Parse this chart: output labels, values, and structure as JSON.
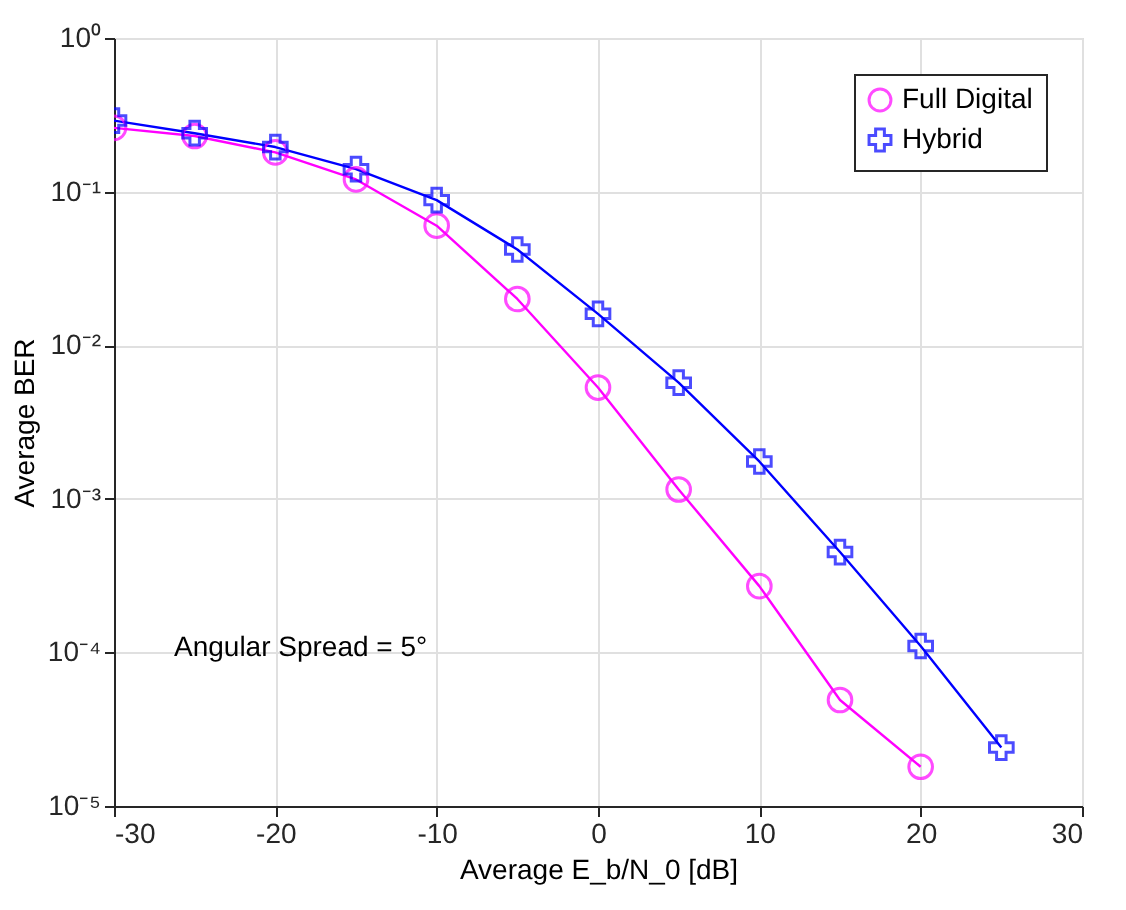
{
  "chart_data": {
    "type": "line",
    "xlabel": "Average E_b/N_0 [dB]",
    "ylabel": "Average BER",
    "x": [
      -30,
      -25,
      -20,
      -15,
      -10,
      -5,
      0,
      5,
      10,
      15,
      20,
      25
    ],
    "series": [
      {
        "name": "Full Digital",
        "color": "#ff00ff",
        "marker": "circle",
        "values": [
          0.26,
          0.23,
          0.18,
          0.12,
          0.06,
          0.02,
          0.0053,
          0.00115,
          0.00027,
          4.9e-05,
          1.8e-05,
          null
        ]
      },
      {
        "name": "Hybrid",
        "color": "#0000ff",
        "marker": "cross",
        "values": [
          0.29,
          0.24,
          0.195,
          0.14,
          0.088,
          0.042,
          0.016,
          0.0057,
          0.00175,
          0.00045,
          0.00011,
          2.4e-05
        ]
      }
    ],
    "log": true,
    "xlim": [
      -30,
      30
    ],
    "xticks": [
      -30,
      -20,
      -10,
      0,
      10,
      20,
      30
    ],
    "ylim": [
      1e-05,
      1
    ],
    "yticks": [
      {
        "value": 1e-05,
        "label": "10⁻⁵"
      },
      {
        "value": 0.0001,
        "label": "10⁻⁴"
      },
      {
        "value": 0.001,
        "label": "10⁻³"
      },
      {
        "value": 0.01,
        "label": "10⁻²"
      },
      {
        "value": 0.1,
        "label": "10⁻¹"
      },
      {
        "value": 1,
        "label": "10⁰"
      }
    ],
    "grid": true,
    "legend": "top right",
    "line_style": "solid",
    "annotations": [
      "Angular Spread = 5°"
    ]
  }
}
